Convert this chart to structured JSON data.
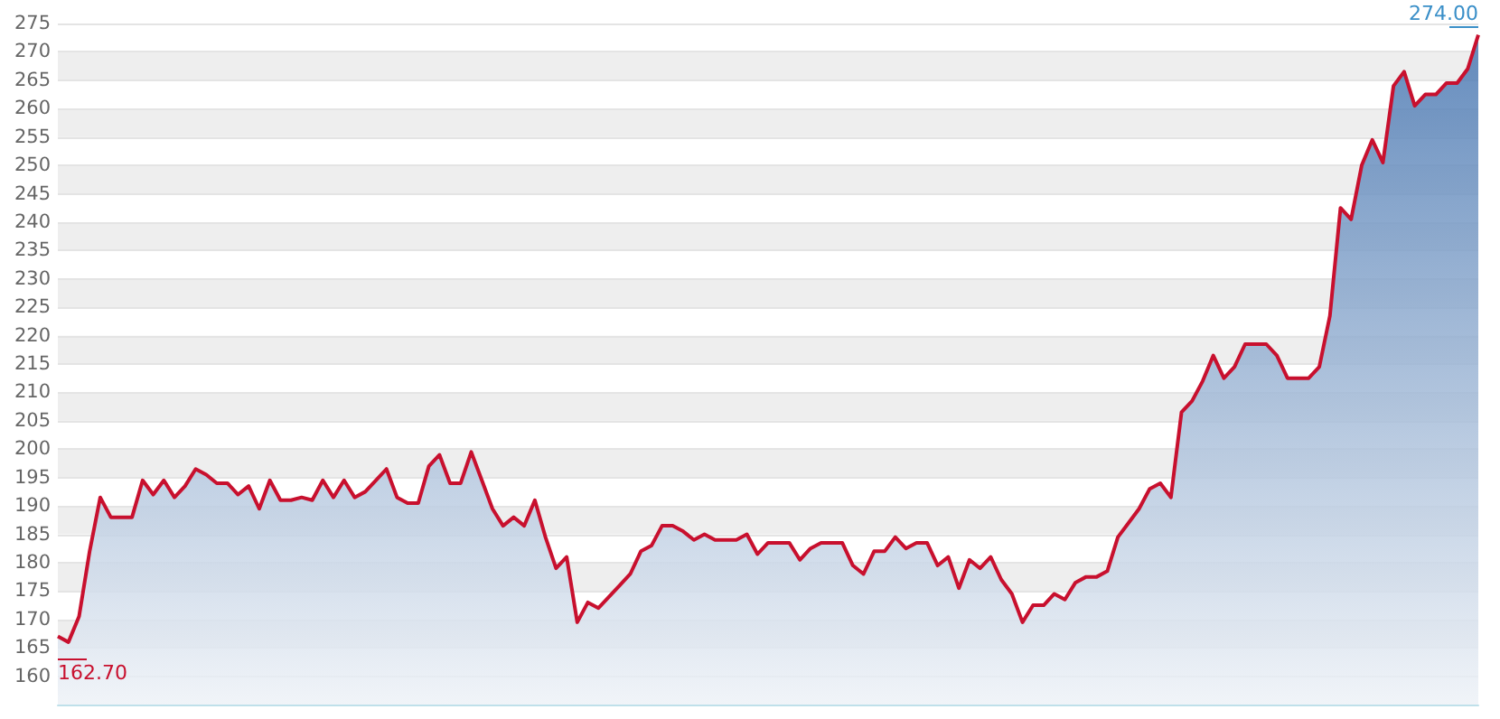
{
  "chart_data": {
    "type": "area",
    "categories": [
      null,
      null,
      null,
      null,
      null,
      null,
      null,
      null,
      null,
      null,
      null,
      null,
      null,
      null,
      null,
      null,
      null,
      null,
      null,
      null,
      null,
      null,
      null,
      null,
      null,
      null,
      null,
      null,
      null,
      null,
      null,
      null,
      null,
      null,
      null,
      null,
      null,
      null,
      null,
      null,
      null,
      null,
      null,
      null,
      null,
      null,
      null,
      null,
      null,
      null,
      null,
      null,
      null,
      null,
      null,
      null,
      null,
      null,
      null,
      null,
      null,
      null,
      null,
      null,
      null,
      null,
      null,
      null,
      null,
      null,
      null,
      null,
      null,
      null,
      null,
      null,
      null,
      null,
      null,
      null,
      null,
      null,
      null,
      null,
      null,
      null,
      null,
      null,
      null,
      null,
      null,
      null,
      null,
      null,
      null,
      null,
      null,
      null,
      null,
      null,
      null,
      null,
      null,
      null,
      null,
      null,
      null,
      null,
      null,
      null,
      null,
      null,
      null,
      null,
      null,
      null,
      null,
      null,
      null,
      null,
      null,
      null,
      null,
      null,
      null,
      null,
      null,
      null,
      null,
      null,
      null,
      null,
      null,
      null,
      null
    ],
    "series": [
      {
        "color": "#c8102e",
        "values": [
          167,
          166,
          170.5,
          182,
          191.5,
          188,
          188,
          188,
          194.5,
          192,
          194.5,
          191.5,
          193.5,
          196.5,
          195.5,
          194,
          194,
          192,
          193.5,
          189.5,
          194.5,
          191,
          191,
          191.5,
          191,
          194.5,
          191.5,
          194.5,
          191.5,
          192.5,
          194.5,
          196.5,
          191.5,
          190.5,
          190.5,
          197,
          199,
          194,
          194,
          199.5,
          194.5,
          189.5,
          186.5,
          188,
          186.5,
          191,
          184.5,
          179,
          181,
          169.5,
          173,
          172,
          174,
          176,
          178,
          182,
          183,
          186.5,
          186.5,
          185.5,
          184,
          185,
          184,
          184,
          184,
          185,
          181.5,
          183.5,
          183.5,
          183.5,
          180.5,
          182.5,
          183.5,
          183.5,
          183.5,
          179.5,
          178,
          182,
          182,
          184.5,
          182.5,
          183.5,
          183.5,
          179.5,
          181,
          175.5,
          180.5,
          179,
          181,
          177,
          174.5,
          169.5,
          172.5,
          172.5,
          174.5,
          173.5,
          176.5,
          177.5,
          177.5,
          178.5,
          184.5,
          187,
          189.5,
          193,
          194,
          191.5,
          206.5,
          208.5,
          212,
          216.5,
          212.5,
          214.5,
          218.5,
          218.5,
          218.5,
          216.5,
          212.5,
          212.5,
          212.5,
          214.5,
          223.5,
          242.5,
          240.5,
          250,
          254.5,
          250.5,
          264,
          266.5,
          260.5,
          262.5,
          262.5,
          264.5,
          264.5,
          267,
          273
        ]
      }
    ],
    "ylim": [
      155,
      275
    ],
    "yticks": [
      160,
      165,
      170,
      175,
      180,
      185,
      190,
      195,
      200,
      205,
      210,
      215,
      220,
      225,
      230,
      235,
      240,
      245,
      250,
      255,
      260,
      265,
      270,
      275
    ],
    "grid": "y",
    "line_style": "solid",
    "tick_labels": "y",
    "annotations": [
      "162.70",
      "274.00"
    ]
  }
}
